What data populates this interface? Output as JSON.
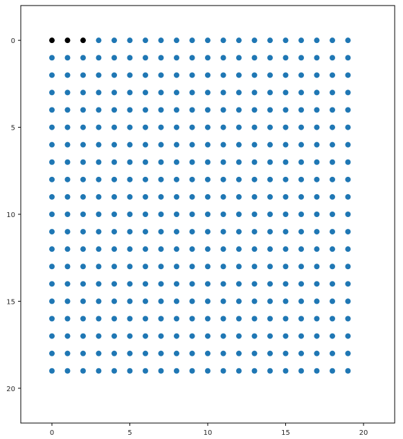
{
  "chart_data": {
    "type": "scatter",
    "title": "",
    "xlabel": "",
    "ylabel": "",
    "xlim": [
      -2,
      22
    ],
    "ylim": [
      22,
      -2
    ],
    "y_inverted": true,
    "grid": false,
    "legend": "none",
    "grid_points": {
      "x_values": [
        0,
        1,
        2,
        3,
        4,
        5,
        6,
        7,
        8,
        9,
        10,
        11,
        12,
        13,
        14,
        15,
        16,
        17,
        18,
        19
      ],
      "y_values": [
        0,
        1,
        2,
        3,
        4,
        5,
        6,
        7,
        8,
        9,
        10,
        11,
        12,
        13,
        14,
        15,
        16,
        17,
        18,
        19
      ],
      "color": "#1f77b4"
    },
    "highlighted_points": {
      "points": [
        [
          0,
          0
        ],
        [
          1,
          0
        ],
        [
          2,
          0
        ]
      ],
      "color": "#000000"
    },
    "x_ticks": [
      "0",
      "5",
      "10",
      "15",
      "20"
    ],
    "y_ticks": [
      "0",
      "5",
      "10",
      "15",
      "20"
    ]
  }
}
